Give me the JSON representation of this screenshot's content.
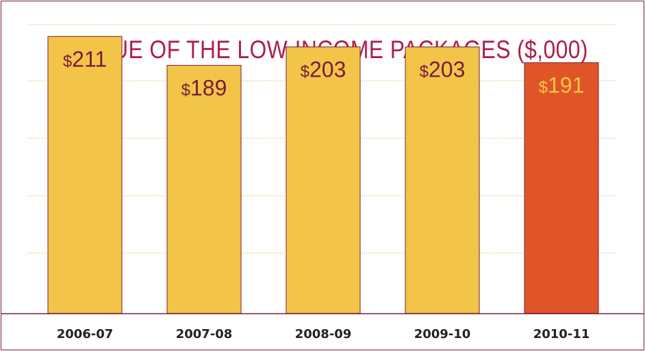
{
  "chart_data": {
    "type": "bar",
    "title": "VALUE OF THE LOW-INCOME PACKAGES ($,000)",
    "categories": [
      "2006-07",
      "2007-08",
      "2008-09",
      "2009-10",
      "2010-11"
    ],
    "values": [
      211,
      189,
      203,
      203,
      191
    ],
    "value_labels": [
      "$211",
      "$189",
      "$203",
      "$203",
      "$191"
    ],
    "ylim": [
      0,
      220
    ],
    "grid": true,
    "bar_colors": [
      "#f2c548",
      "#f2c548",
      "#f2c548",
      "#f2c548",
      "#e05527"
    ],
    "label_colors": [
      "#7a1a3a",
      "#7a1a3a",
      "#7a1a3a",
      "#7a1a3a",
      "#f2c548"
    ],
    "colors": {
      "frame": "#7a1a3a",
      "title": "#b01e4a",
      "grid": "#e0a030",
      "bar_border": "#7a1a3a"
    }
  }
}
